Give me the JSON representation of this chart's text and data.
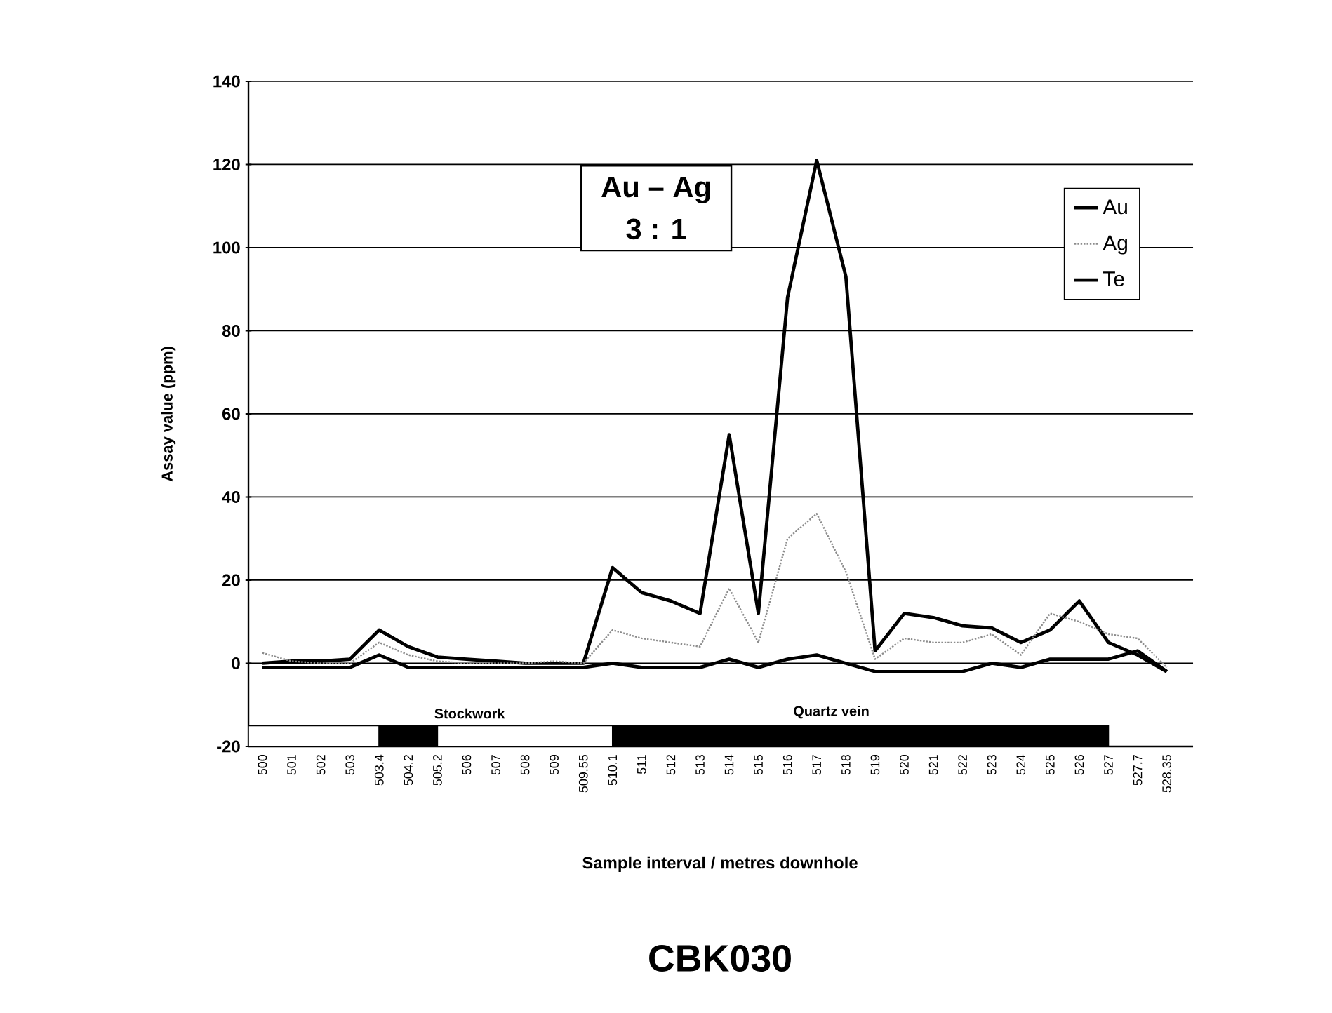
{
  "chart_data": {
    "type": "line",
    "title": "CBK030",
    "xlabel": "Sample interval / metres downhole",
    "ylabel": "Assay value (ppm)",
    "categories": [
      "500",
      "501",
      "502",
      "503",
      "503.4",
      "504.2",
      "505.2",
      "506",
      "507",
      "508",
      "509",
      "509.55",
      "510.1",
      "511",
      "512",
      "513",
      "514",
      "515",
      "516",
      "517",
      "518",
      "519",
      "520",
      "521",
      "522",
      "523",
      "524",
      "525",
      "526",
      "527",
      "527.7",
      "528.35"
    ],
    "series": [
      {
        "name": "Au",
        "color": "#000000",
        "line_style": "solid",
        "values": [
          0,
          0.5,
          0.5,
          1,
          8,
          4,
          1.5,
          1,
          0.5,
          0,
          0,
          0,
          23,
          17,
          15,
          12,
          55,
          12,
          88,
          121,
          93,
          3,
          12,
          11,
          9,
          8.5,
          5,
          8,
          15,
          5,
          2,
          -2
        ]
      },
      {
        "name": "Ag",
        "color": "#8c8c8c",
        "line_style": "dotted",
        "values": [
          2.5,
          0.5,
          0,
          0,
          5,
          2,
          0.5,
          0,
          0,
          0,
          0.5,
          0,
          8,
          6,
          5,
          4,
          18,
          5,
          30,
          36,
          22,
          1,
          6,
          5,
          5,
          7,
          2,
          12,
          10,
          7,
          6,
          -1
        ]
      },
      {
        "name": "Te",
        "color": "#000000",
        "line_style": "solid",
        "values": [
          -1,
          -1,
          -1,
          -1,
          2,
          -1,
          -1,
          -1,
          -1,
          -1,
          -1,
          -1,
          0,
          -1,
          -1,
          -1,
          1,
          -1,
          1,
          2,
          0,
          -2,
          -2,
          -2,
          -2,
          0,
          -1,
          1,
          1,
          1,
          3,
          -2
        ]
      }
    ],
    "ylim": [
      -20,
      140
    ],
    "yticks": [
      -20,
      0,
      20,
      40,
      60,
      80,
      100,
      120,
      140
    ],
    "grid": "y",
    "legend": "top right",
    "marker": "none",
    "annotations": [
      "Au – Ag",
      "3 : 1",
      "Stockwork",
      "Quartz vein"
    ]
  }
}
